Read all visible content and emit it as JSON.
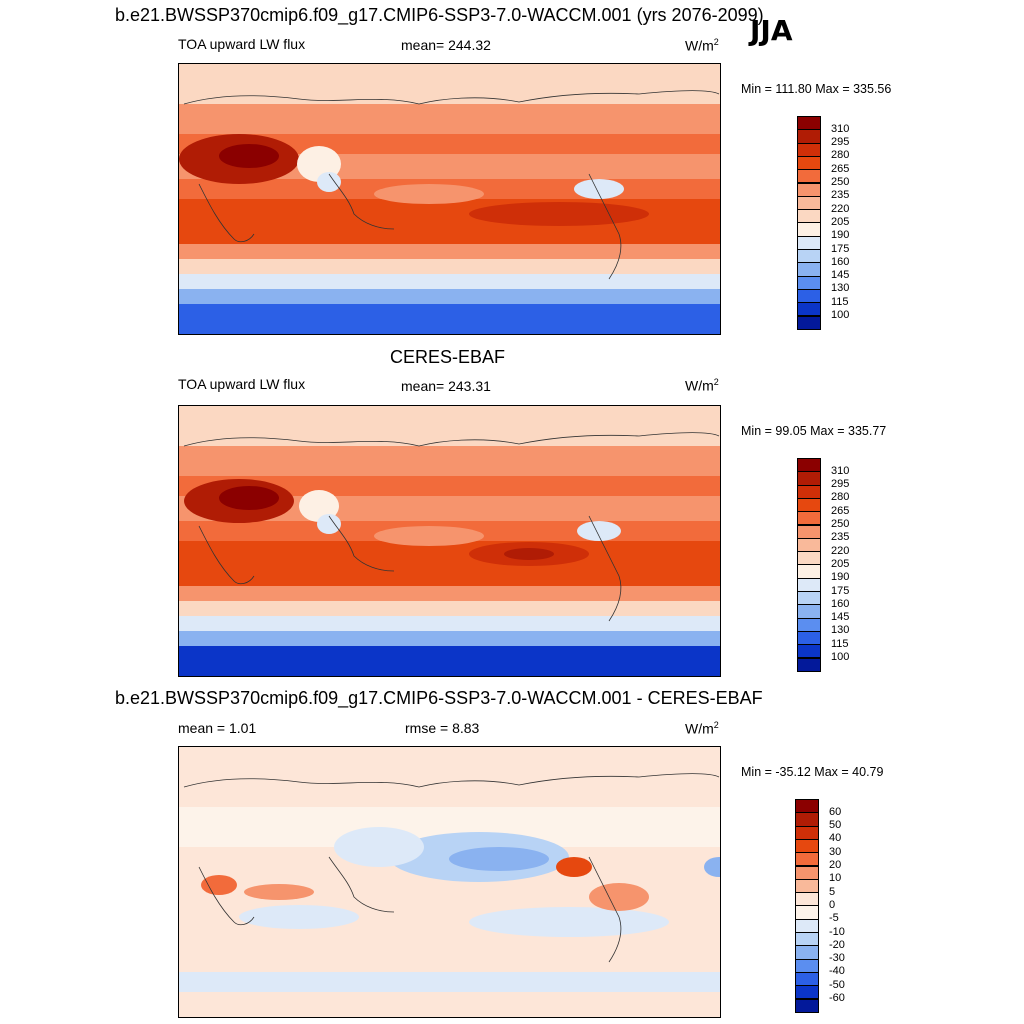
{
  "season": "JJA",
  "panels": [
    {
      "title": "b.e21.BWSSP370cmip6.f09_g17.CMIP6-SSP3-7.0-WACCM.001 (yrs 2076-2099)",
      "left_label": "TOA upward LW flux",
      "center_label": "mean= 244.32",
      "units": "W/m",
      "units_sup": "2",
      "minmax": "Min = 111.80 Max = 335.56",
      "colorbar": [
        "310",
        "295",
        "280",
        "265",
        "250",
        "235",
        "220",
        "205",
        "190",
        "175",
        "160",
        "145",
        "130",
        "115",
        "100"
      ],
      "colors": [
        "#8b0000",
        "#b01c05",
        "#cf2f08",
        "#e6480f",
        "#f26b3b",
        "#f6946d",
        "#f9b99a",
        "#fbd8c2",
        "#fdf0e4",
        "#dde9f8",
        "#b8d3f5",
        "#8ab2f0",
        "#5b8ef0",
        "#2c60e6",
        "#0b35c8",
        "#03199a"
      ]
    },
    {
      "title": "CERES-EBAF",
      "left_label": "TOA upward LW flux",
      "center_label": "mean= 243.31",
      "units": "W/m",
      "units_sup": "2",
      "minmax": "Min =  99.05 Max = 335.77",
      "colorbar": [
        "310",
        "295",
        "280",
        "265",
        "250",
        "235",
        "220",
        "205",
        "190",
        "175",
        "160",
        "145",
        "130",
        "115",
        "100"
      ],
      "colors": [
        "#8b0000",
        "#b01c05",
        "#cf2f08",
        "#e6480f",
        "#f26b3b",
        "#f6946d",
        "#f9b99a",
        "#fbd8c2",
        "#fdf0e4",
        "#dde9f8",
        "#b8d3f5",
        "#8ab2f0",
        "#5b8ef0",
        "#2c60e6",
        "#0b35c8",
        "#03199a"
      ]
    },
    {
      "title": "b.e21.BWSSP370cmip6.f09_g17.CMIP6-SSP3-7.0-WACCM.001 - CERES-EBAF",
      "left_label": "mean =   1.01",
      "center_label": "rmse =   8.83",
      "units": "W/m",
      "units_sup": "2",
      "minmax": "Min = -35.12 Max =  40.79",
      "colorbar": [
        "60",
        "50",
        "40",
        "30",
        "20",
        "10",
        "5",
        "0",
        "-5",
        "-10",
        "-20",
        "-30",
        "-40",
        "-50",
        "-60"
      ],
      "colors": [
        "#8b0000",
        "#b01c05",
        "#cf2f08",
        "#e6480f",
        "#f26b3b",
        "#f6946d",
        "#f9b99a",
        "#fde6d8",
        "#fdf3ea",
        "#dde9f8",
        "#b8d3f5",
        "#8ab2f0",
        "#5b8ef0",
        "#2c60e6",
        "#0b35c8",
        "#03199a"
      ]
    }
  ]
}
